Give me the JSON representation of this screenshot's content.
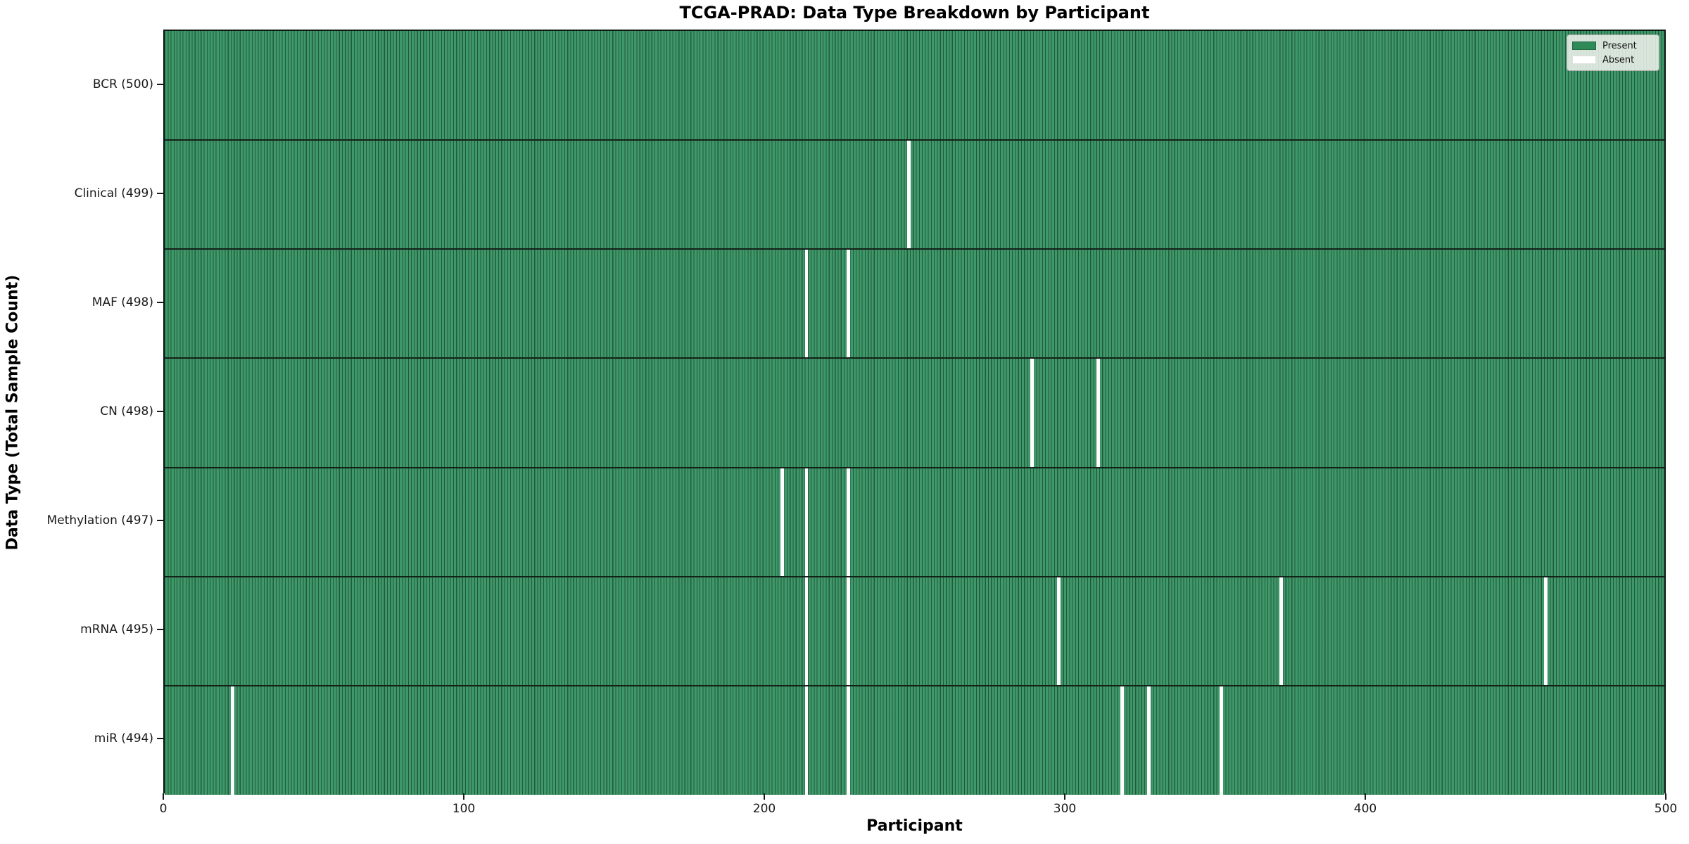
{
  "title": "TCGA-PRAD: Data Type Breakdown by Participant",
  "xlabel": "Participant",
  "ylabel": "Data Type (Total Sample Count)",
  "legend": {
    "present_label": "Present",
    "absent_label": "Absent"
  },
  "colors": {
    "present": "#2e8b57",
    "present_fill": "#379463",
    "absent": "#ffffff",
    "cell_edge": "rgba(10,32,20,0.50)",
    "row_boundary": "#142119"
  },
  "x_ticks": [
    0,
    100,
    200,
    300,
    400,
    500
  ],
  "chart_data": {
    "type": "heatmap",
    "title": "TCGA-PRAD: Data Type Breakdown by Participant",
    "xlabel": "Participant",
    "ylabel": "Data Type (Total Sample Count)",
    "x_range": [
      0,
      500
    ],
    "n_participants": 500,
    "legend_entries": [
      "Present",
      "Absent"
    ],
    "legend_position": "upper right",
    "rows": [
      {
        "label": "BCR (500)",
        "total": 500,
        "absent_participants": []
      },
      {
        "label": "Clinical (499)",
        "total": 499,
        "absent_participants": [
          247
        ]
      },
      {
        "label": "MAF (498)",
        "total": 498,
        "absent_participants": [
          213,
          227
        ]
      },
      {
        "label": "CN (498)",
        "total": 498,
        "absent_participants": [
          288,
          310
        ]
      },
      {
        "label": "Methylation (497)",
        "total": 497,
        "absent_participants": [
          205,
          213,
          227
        ]
      },
      {
        "label": "mRNA (495)",
        "total": 495,
        "absent_participants": [
          213,
          227,
          297,
          371,
          459
        ]
      },
      {
        "label": "miR (494)",
        "total": 494,
        "absent_participants": [
          22,
          213,
          227,
          318,
          327,
          351
        ]
      }
    ]
  }
}
